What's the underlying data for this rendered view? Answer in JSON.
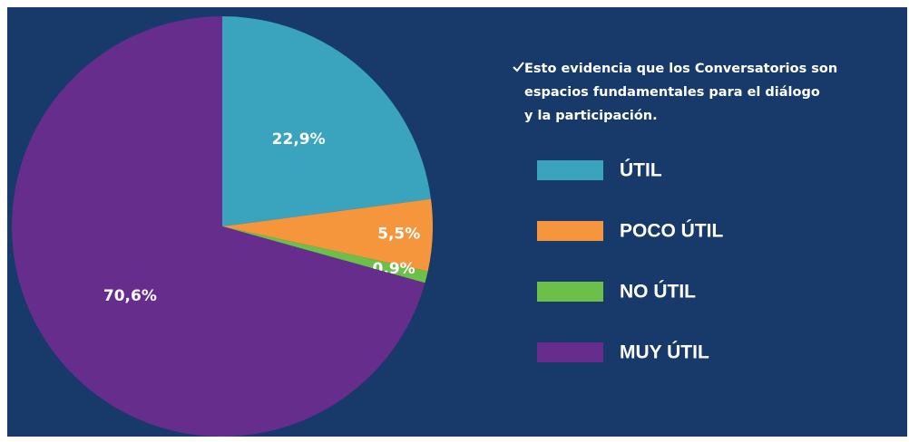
{
  "chart_data": {
    "type": "pie",
    "categories": [
      "ÚTIL",
      "POCO ÚTIL",
      "NO ÚTIL",
      "MUY ÚTIL"
    ],
    "values": [
      22.9,
      5.5,
      0.9,
      70.6
    ],
    "value_labels": [
      "22,9%",
      "5,5%",
      "0,9%",
      "70,6%"
    ],
    "colors": [
      "#3aa3bd",
      "#f5963c",
      "#6cc04a",
      "#662d8c"
    ],
    "annotation": [
      "Esto evidencia que los Conversatorios son",
      "espacios fundamentales para el diálogo",
      "y la participación."
    ],
    "legend": "right"
  }
}
